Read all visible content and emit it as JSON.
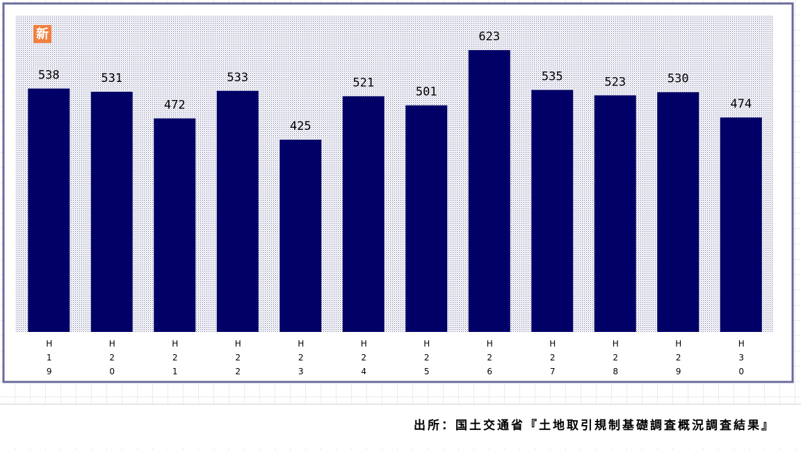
{
  "chart_data": {
    "type": "bar",
    "badge": "新",
    "categories": [
      "H19",
      "H20",
      "H21",
      "H22",
      "H23",
      "H24",
      "H25",
      "H26",
      "H27",
      "H28",
      "H29",
      "H30"
    ],
    "values": [
      538,
      531,
      472,
      533,
      425,
      521,
      501,
      623,
      535,
      523,
      530,
      474
    ],
    "color": "#000066",
    "ylim": [
      0,
      700
    ],
    "source": "出所：国土交通省『土地取引規制基礎調査概況調査結果』"
  }
}
